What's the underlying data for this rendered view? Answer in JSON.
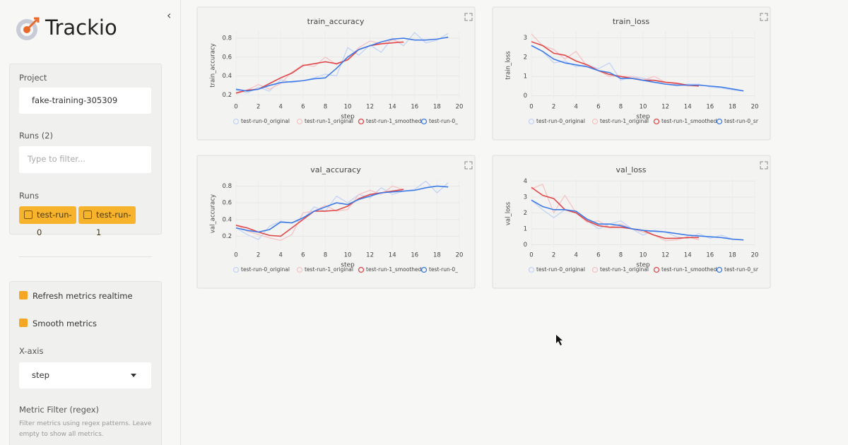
{
  "sidebar": {
    "logo": "Trackio",
    "project_label": "Project",
    "project": "fake-training-305309",
    "runs_count_label": "Runs (2)",
    "filter_placeholder": "Type to filter...",
    "runs_label": "Runs",
    "runs": [
      "test-run-0",
      "test-run-1"
    ],
    "refresh_label": "Refresh metrics realtime",
    "smooth_label": "Smooth metrics",
    "xaxis_label": "X-axis",
    "xaxis_value": "step",
    "metric_filter_label": "Metric Filter (regex)",
    "metric_filter_help": "Filter metrics using regex patterns. Leave empty to show all metrics."
  },
  "chart_data": [
    {
      "type": "line",
      "title": "train_accuracy",
      "x_label": "step",
      "y_label": "train_accuracy",
      "grid": true,
      "x": [
        0,
        1,
        2,
        3,
        4,
        5,
        6,
        7,
        8,
        9,
        10,
        11,
        12,
        13,
        14,
        15,
        16,
        17,
        18,
        19
      ],
      "xlim": [
        0,
        20
      ],
      "xticks": [
        0,
        2,
        4,
        6,
        8,
        10,
        12,
        14,
        16,
        18,
        20
      ],
      "ylim": [
        0.15,
        0.875
      ],
      "yticks": [
        0.2,
        0.4,
        0.6,
        0.8
      ],
      "series": [
        {
          "name": "test-run-0_original",
          "color": "#c3d3f5",
          "values": [
            0.25,
            0.22,
            0.28,
            0.24,
            0.36,
            0.33,
            0.35,
            0.38,
            0.42,
            0.4,
            0.7,
            0.62,
            0.73,
            0.65,
            0.8,
            0.72,
            0.86,
            0.75,
            0.78,
            0.85
          ]
        },
        {
          "name": "test-run-1_original",
          "color": "#f5c4c4",
          "values": [
            0.21,
            0.25,
            0.31,
            0.26,
            0.32,
            0.44,
            0.52,
            0.5,
            0.6,
            0.52,
            0.58,
            0.7,
            0.77,
            0.74,
            0.78,
            0.75,
            null,
            null,
            null,
            null
          ]
        },
        {
          "name": "test-run-1_smoothed",
          "color": "#e0484a",
          "values": [
            0.22,
            0.25,
            0.26,
            0.32,
            0.38,
            0.43,
            0.51,
            0.53,
            0.55,
            0.53,
            0.57,
            0.68,
            0.72,
            0.74,
            0.75,
            0.76,
            null,
            null,
            null,
            null
          ]
        },
        {
          "name": "test-run-0_",
          "color": "#3f7be6",
          "values": [
            0.26,
            0.24,
            0.26,
            0.3,
            0.33,
            0.34,
            0.35,
            0.37,
            0.38,
            0.48,
            0.6,
            0.68,
            0.72,
            0.76,
            0.79,
            0.8,
            0.78,
            0.78,
            0.79,
            0.81
          ]
        }
      ]
    },
    {
      "type": "line",
      "title": "train_loss",
      "x_label": "step",
      "y_label": "train_loss",
      "grid": true,
      "x": [
        0,
        1,
        2,
        3,
        4,
        5,
        6,
        7,
        8,
        9,
        10,
        11,
        12,
        13,
        14,
        15,
        16,
        17,
        18,
        19
      ],
      "xlim": [
        0,
        20
      ],
      "xticks": [
        0,
        2,
        4,
        6,
        8,
        10,
        12,
        14,
        16,
        18,
        20
      ],
      "ylim": [
        -0.2,
        3.35
      ],
      "yticks": [
        0,
        1,
        2,
        3
      ],
      "series": [
        {
          "name": "test-run-0_original",
          "color": "#c3d3f5",
          "values": [
            2.6,
            2.3,
            1.7,
            1.8,
            1.5,
            1.6,
            1.4,
            1.7,
            0.8,
            1.0,
            0.9,
            0.8,
            0.6,
            0.5,
            0.6,
            0.6,
            0.45,
            0.4,
            0.3,
            0.25
          ]
        },
        {
          "name": "test-run-1_original",
          "color": "#f5c4c4",
          "values": [
            3.2,
            2.6,
            2.4,
            1.9,
            2.3,
            1.5,
            1.3,
            1.0,
            1.0,
            1.0,
            0.8,
            1.0,
            0.7,
            0.6,
            0.5,
            0.5,
            null,
            null,
            null,
            null
          ]
        },
        {
          "name": "test-run-1_smoothed",
          "color": "#e0484a",
          "values": [
            2.8,
            2.6,
            2.2,
            2.1,
            1.8,
            1.6,
            1.3,
            1.1,
            1.0,
            0.9,
            0.8,
            0.8,
            0.7,
            0.65,
            0.55,
            0.5,
            null,
            null,
            null,
            null
          ]
        },
        {
          "name": "test-run-0_sr",
          "color": "#3f7be6",
          "values": [
            2.6,
            2.3,
            1.9,
            1.7,
            1.6,
            1.5,
            1.3,
            1.2,
            0.9,
            0.9,
            0.8,
            0.7,
            0.6,
            0.55,
            0.55,
            0.55,
            0.5,
            0.45,
            0.35,
            0.25
          ]
        }
      ]
    },
    {
      "type": "line",
      "title": "val_accuracy",
      "x_label": "step",
      "y_label": "val_accuracy",
      "grid": true,
      "x": [
        0,
        1,
        2,
        3,
        4,
        5,
        6,
        7,
        8,
        9,
        10,
        11,
        12,
        13,
        14,
        15,
        16,
        17,
        18,
        19
      ],
      "xlim": [
        0,
        20
      ],
      "xticks": [
        0,
        2,
        4,
        6,
        8,
        10,
        12,
        14,
        16,
        18,
        20
      ],
      "ylim": [
        0.06,
        0.88
      ],
      "yticks": [
        0.2,
        0.4,
        0.6,
        0.8
      ],
      "series": [
        {
          "name": "test-run-0_original",
          "color": "#c3d3f5",
          "values": [
            0.3,
            0.22,
            0.16,
            0.32,
            0.38,
            0.36,
            0.4,
            0.55,
            0.5,
            0.68,
            0.6,
            0.7,
            0.66,
            0.78,
            0.7,
            0.74,
            0.76,
            0.86,
            0.72,
            0.84
          ]
        },
        {
          "name": "test-run-1_original",
          "color": "#f5c4c4",
          "values": [
            0.34,
            0.26,
            0.22,
            0.18,
            0.15,
            0.22,
            0.48,
            0.5,
            0.57,
            0.5,
            0.52,
            0.7,
            0.75,
            0.7,
            0.8,
            0.76,
            null,
            null,
            null,
            null
          ]
        },
        {
          "name": "test-run-1_smoothed",
          "color": "#e0484a",
          "values": [
            0.33,
            0.3,
            0.25,
            0.21,
            0.2,
            0.3,
            0.4,
            0.5,
            0.5,
            0.51,
            0.56,
            0.65,
            0.7,
            0.72,
            0.74,
            0.76,
            null,
            null,
            null,
            null
          ]
        },
        {
          "name": "test-run-0_",
          "color": "#3f7be6",
          "values": [
            0.3,
            0.27,
            0.25,
            0.28,
            0.37,
            0.36,
            0.42,
            0.5,
            0.55,
            0.6,
            0.58,
            0.64,
            0.68,
            0.72,
            0.73,
            0.74,
            0.75,
            0.78,
            0.8,
            0.79
          ]
        }
      ]
    },
    {
      "type": "line",
      "title": "val_loss",
      "x_label": "step",
      "y_label": "val_loss",
      "grid": true,
      "x": [
        0,
        1,
        2,
        3,
        4,
        5,
        6,
        7,
        8,
        9,
        10,
        11,
        12,
        13,
        14,
        15,
        16,
        17,
        18,
        19
      ],
      "xlim": [
        0,
        20
      ],
      "xticks": [
        0,
        2,
        4,
        6,
        8,
        10,
        12,
        14,
        16,
        18,
        20
      ],
      "ylim": [
        -0.2,
        4.1
      ],
      "yticks": [
        0,
        1,
        2,
        3,
        4
      ],
      "series": [
        {
          "name": "test-run-0_original",
          "color": "#c3d3f5",
          "values": [
            2.8,
            2.2,
            1.7,
            2.2,
            2.1,
            1.5,
            1.0,
            1.3,
            1.5,
            1.0,
            0.6,
            0.9,
            0.8,
            0.5,
            0.4,
            0.7,
            0.4,
            0.6,
            0.35,
            0.3
          ]
        },
        {
          "name": "test-run-1_original",
          "color": "#f5c4c4",
          "values": [
            3.5,
            3.8,
            2.0,
            3.1,
            2.0,
            1.4,
            1.5,
            1.1,
            1.3,
            1.0,
            0.8,
            0.6,
            0.25,
            0.3,
            0.5,
            0.3,
            null,
            null,
            null,
            null
          ]
        },
        {
          "name": "test-run-1_smoothed",
          "color": "#e0484a",
          "values": [
            3.6,
            3.1,
            2.9,
            2.2,
            2.0,
            1.5,
            1.2,
            1.1,
            1.1,
            1.0,
            0.9,
            0.6,
            0.4,
            0.4,
            0.45,
            0.45,
            null,
            null,
            null,
            null
          ]
        },
        {
          "name": "test-run-0_sr",
          "color": "#3f7be6",
          "values": [
            2.8,
            2.4,
            2.2,
            2.2,
            2.1,
            1.6,
            1.3,
            1.3,
            1.2,
            1.0,
            0.9,
            0.85,
            0.8,
            0.7,
            0.6,
            0.55,
            0.5,
            0.45,
            0.35,
            0.3
          ]
        }
      ]
    }
  ]
}
